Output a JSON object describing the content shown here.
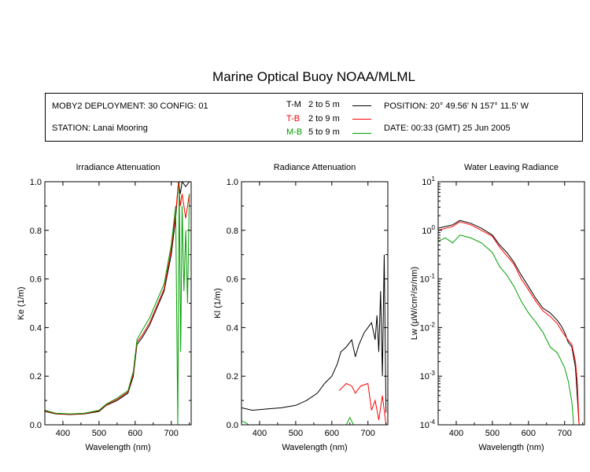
{
  "header": {
    "title": "Marine Optical Buoy NOAA/MLML",
    "deployment": "MOBY2 DEPLOYMENT: 30 CONFIG: 01",
    "station": "STATION: Lanai Mooring",
    "position": "POSITION: 20° 49.56' N   157° 11.5' W",
    "date": "DATE: 00:33 (GMT) 25 Jun 2005",
    "legend": [
      {
        "code": "T-M",
        "range": "2 to 5  m",
        "color": "#000000"
      },
      {
        "code": "T-B",
        "range": "2 to 9  m",
        "color": "#ff0000"
      },
      {
        "code": "M-B",
        "range": "5 to 9  m",
        "color": "#00a000"
      }
    ]
  },
  "chart_data": [
    {
      "type": "line",
      "title": "Irradiance Attenuation",
      "xlabel": "Wavelength (nm)",
      "ylabel": "Ke  (1/m)",
      "xlim": [
        350,
        755
      ],
      "ylim": [
        0,
        1.0
      ],
      "xticks": [
        400,
        500,
        600,
        700
      ],
      "yticks": [
        0.0,
        0.2,
        0.4,
        0.6,
        0.8,
        1.0
      ],
      "yticklabels": [
        "0.0",
        "0.2",
        "0.4",
        "0.6",
        "0.8",
        "1.0"
      ],
      "series": [
        {
          "color": "#000000",
          "x": [
            350,
            380,
            420,
            460,
            500,
            520,
            550,
            580,
            595,
            605,
            620,
            640,
            660,
            680,
            700,
            712,
            720,
            725,
            730,
            740,
            750
          ],
          "y": [
            0.055,
            0.045,
            0.042,
            0.045,
            0.055,
            0.08,
            0.1,
            0.13,
            0.2,
            0.33,
            0.36,
            0.41,
            0.48,
            0.55,
            0.7,
            0.85,
            1.0,
            0.95,
            1.0,
            0.98,
            1.0
          ]
        },
        {
          "color": "#ff0000",
          "x": [
            350,
            380,
            420,
            460,
            500,
            520,
            550,
            580,
            595,
            605,
            620,
            640,
            660,
            680,
            700,
            712,
            720,
            725,
            730,
            740,
            750
          ],
          "y": [
            0.057,
            0.046,
            0.043,
            0.046,
            0.058,
            0.082,
            0.105,
            0.135,
            0.21,
            0.34,
            0.37,
            0.42,
            0.49,
            0.56,
            0.72,
            0.87,
            1.0,
            0.9,
            0.95,
            0.85,
            0.95
          ]
        },
        {
          "color": "#00a000",
          "x": [
            350,
            380,
            420,
            460,
            500,
            520,
            550,
            580,
            595,
            605,
            620,
            640,
            660,
            680,
            700,
            712,
            718,
            722,
            726,
            730,
            735,
            740,
            745,
            750
          ],
          "y": [
            0.06,
            0.048,
            0.045,
            0.048,
            0.06,
            0.085,
            0.11,
            0.14,
            0.22,
            0.35,
            0.39,
            0.44,
            0.51,
            0.58,
            0.74,
            0.9,
            0.0,
            1.0,
            0.3,
            0.9,
            0.55,
            0.8,
            0.5,
            0.95
          ]
        }
      ]
    },
    {
      "type": "line",
      "title": "Radiance Attenuation",
      "xlabel": "Wavelength (nm)",
      "ylabel": "Kl  (1/m)",
      "xlim": [
        350,
        755
      ],
      "ylim": [
        0,
        1.0
      ],
      "xticks": [
        400,
        500,
        600,
        700
      ],
      "yticks": [
        0.0,
        0.2,
        0.4,
        0.6,
        0.8,
        1.0
      ],
      "yticklabels": [
        "0.0",
        "0.2",
        "0.4",
        "0.6",
        "0.8",
        "1.0"
      ],
      "series": [
        {
          "color": "#000000",
          "x": [
            350,
            380,
            420,
            460,
            500,
            530,
            560,
            580,
            600,
            615,
            625,
            640,
            655,
            665,
            675,
            690,
            700,
            710,
            720,
            725,
            730,
            735,
            740,
            745,
            750
          ],
          "y": [
            0.07,
            0.06,
            0.065,
            0.07,
            0.08,
            0.1,
            0.13,
            0.17,
            0.2,
            0.25,
            0.3,
            0.32,
            0.35,
            0.28,
            0.33,
            0.38,
            0.4,
            0.42,
            0.35,
            0.45,
            0.3,
            0.55,
            0.2,
            0.7,
            0.05
          ]
        },
        {
          "color": "#ff0000",
          "x": [
            620,
            640,
            655,
            665,
            680,
            700,
            710,
            720,
            730,
            740,
            750
          ],
          "y": [
            0.14,
            0.17,
            0.16,
            0.13,
            0.16,
            0.17,
            0.06,
            0.1,
            0.02,
            0.12,
            0.0
          ]
        },
        {
          "color": "#00a000",
          "x": [
            350,
            360,
            370,
            640,
            650,
            660
          ],
          "y": [
            0.015,
            0.01,
            0.0,
            0.0,
            0.03,
            0.0
          ]
        }
      ]
    },
    {
      "type": "line",
      "title": "Water Leaving Radiance",
      "xlabel": "Wavelength (nm)",
      "ylabel": "Lw  (µW/cm²/sr/nm)",
      "scale": "log",
      "xlim": [
        350,
        755
      ],
      "ylim": [
        0.0001,
        10
      ],
      "xticks": [
        400,
        500,
        600,
        700
      ],
      "yticks": [
        0.0001,
        0.001,
        0.01,
        0.1,
        1,
        10
      ],
      "yticklabels": [
        {
          "base": "10",
          "exp": "-4"
        },
        {
          "base": "10",
          "exp": "-3"
        },
        {
          "base": "10",
          "exp": "-2"
        },
        {
          "base": "10",
          "exp": "-1"
        },
        {
          "base": "10",
          "exp": "0"
        },
        {
          "base": "10",
          "exp": "1"
        }
      ],
      "series": [
        {
          "color": "#000000",
          "x": [
            350,
            370,
            390,
            410,
            440,
            470,
            500,
            520,
            540,
            560,
            580,
            600,
            620,
            640,
            660,
            680,
            690,
            700,
            710,
            720,
            730,
            735,
            740,
            750
          ],
          "y": [
            1.1,
            1.2,
            1.3,
            1.6,
            1.4,
            1.1,
            0.8,
            0.5,
            0.35,
            0.22,
            0.12,
            0.07,
            0.04,
            0.025,
            0.02,
            0.014,
            0.011,
            0.008,
            0.005,
            0.004,
            0.0015,
            0.0004,
            0.0001,
            0.0001
          ]
        },
        {
          "color": "#ff0000",
          "x": [
            350,
            370,
            390,
            410,
            440,
            470,
            500,
            520,
            540,
            560,
            580,
            600,
            620,
            640,
            660,
            680,
            690,
            700,
            710,
            720,
            730,
            735,
            740,
            750
          ],
          "y": [
            1.0,
            1.1,
            1.2,
            1.5,
            1.3,
            1.0,
            0.75,
            0.45,
            0.3,
            0.2,
            0.1,
            0.06,
            0.035,
            0.022,
            0.017,
            0.012,
            0.009,
            0.007,
            0.0055,
            0.0045,
            0.002,
            0.0008,
            0.0001,
            0.0001
          ]
        },
        {
          "color": "#00a000",
          "x": [
            350,
            370,
            390,
            410,
            440,
            470,
            500,
            520,
            540,
            560,
            580,
            600,
            620,
            640,
            660,
            680,
            700,
            710,
            720,
            725,
            730
          ],
          "y": [
            0.6,
            0.7,
            0.55,
            0.8,
            0.7,
            0.55,
            0.35,
            0.18,
            0.12,
            0.07,
            0.035,
            0.02,
            0.013,
            0.008,
            0.004,
            0.003,
            0.0015,
            0.0008,
            0.0003,
            0.0001,
            0.0001
          ]
        }
      ]
    }
  ]
}
